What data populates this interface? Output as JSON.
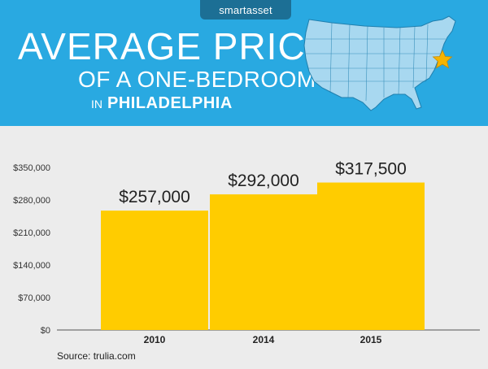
{
  "brand": "smartasset",
  "title_line1": "AVERAGE PRICE",
  "title_line2": "OF A ONE-BEDROOM",
  "title_line3_prefix": "IN",
  "title_line3_city": "PHILADELPHIA",
  "map_icon": "us-map-icon",
  "star_icon": "star-icon",
  "source": "Source: trulia.com",
  "colors": {
    "header": "#29a9e1",
    "brand_tab": "#1c6f95",
    "bar": "#ffcc00",
    "map_fill": "#a8d8f0",
    "star": "#f6b400"
  },
  "chart_data": {
    "type": "bar",
    "categories": [
      "2010",
      "2014",
      "2015"
    ],
    "values": [
      257000,
      292000,
      317500
    ],
    "value_labels": [
      "$257,000",
      "$292,000",
      "$317,500"
    ],
    "ylim": [
      0,
      350000
    ],
    "yticks": [
      0,
      70000,
      140000,
      210000,
      280000,
      350000
    ],
    "ytick_labels": [
      "$0",
      "$70,000",
      "$140,000",
      "$210,000",
      "$280,000",
      "$350,000"
    ],
    "title": "",
    "xlabel": "",
    "ylabel": "",
    "grid": false
  }
}
